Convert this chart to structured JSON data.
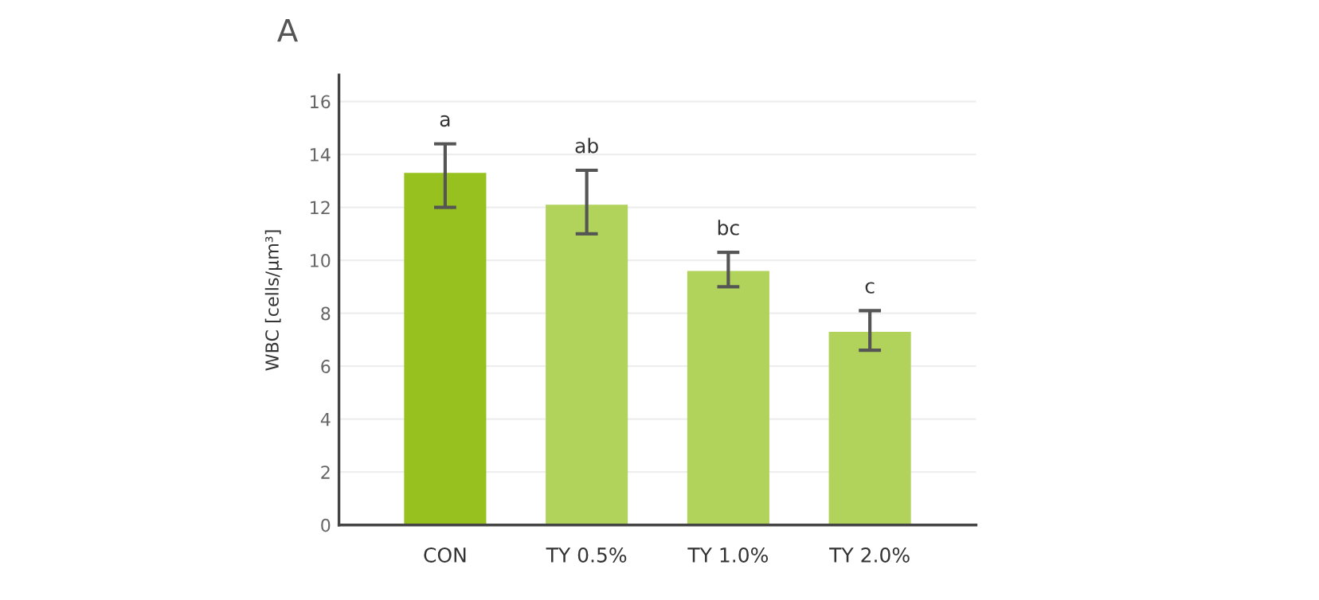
{
  "chart_data": {
    "type": "bar",
    "title": "A",
    "ylabel": "WBC [cells/μm³]",
    "categories": [
      "CON",
      "TY 0.5%",
      "TY 1.0%",
      "TY 2.0%"
    ],
    "values": [
      13.3,
      12.1,
      9.6,
      7.3
    ],
    "colors": [
      "#97c11f",
      "#b1d35c",
      "#b1d35c",
      "#b1d35c"
    ],
    "errors": [
      [
        12.0,
        14.4
      ],
      [
        11.0,
        13.4
      ],
      [
        9.0,
        10.3
      ],
      [
        6.6,
        8.1
      ]
    ],
    "annotations": [
      {
        "text": "a",
        "x": "CON",
        "y": 14.4
      },
      {
        "text": "ab",
        "x": "TY 0.5%",
        "y": 13.4
      },
      {
        "text": "bc",
        "x": "TY 1.0%",
        "y": 10.3
      },
      {
        "text": "c",
        "x": "TY 2.0%",
        "y": 8.1
      }
    ],
    "ylim": [
      0,
      17
    ],
    "yticks": [
      0,
      2,
      4,
      6,
      8,
      10,
      12,
      14,
      16
    ],
    "grid": "y"
  }
}
